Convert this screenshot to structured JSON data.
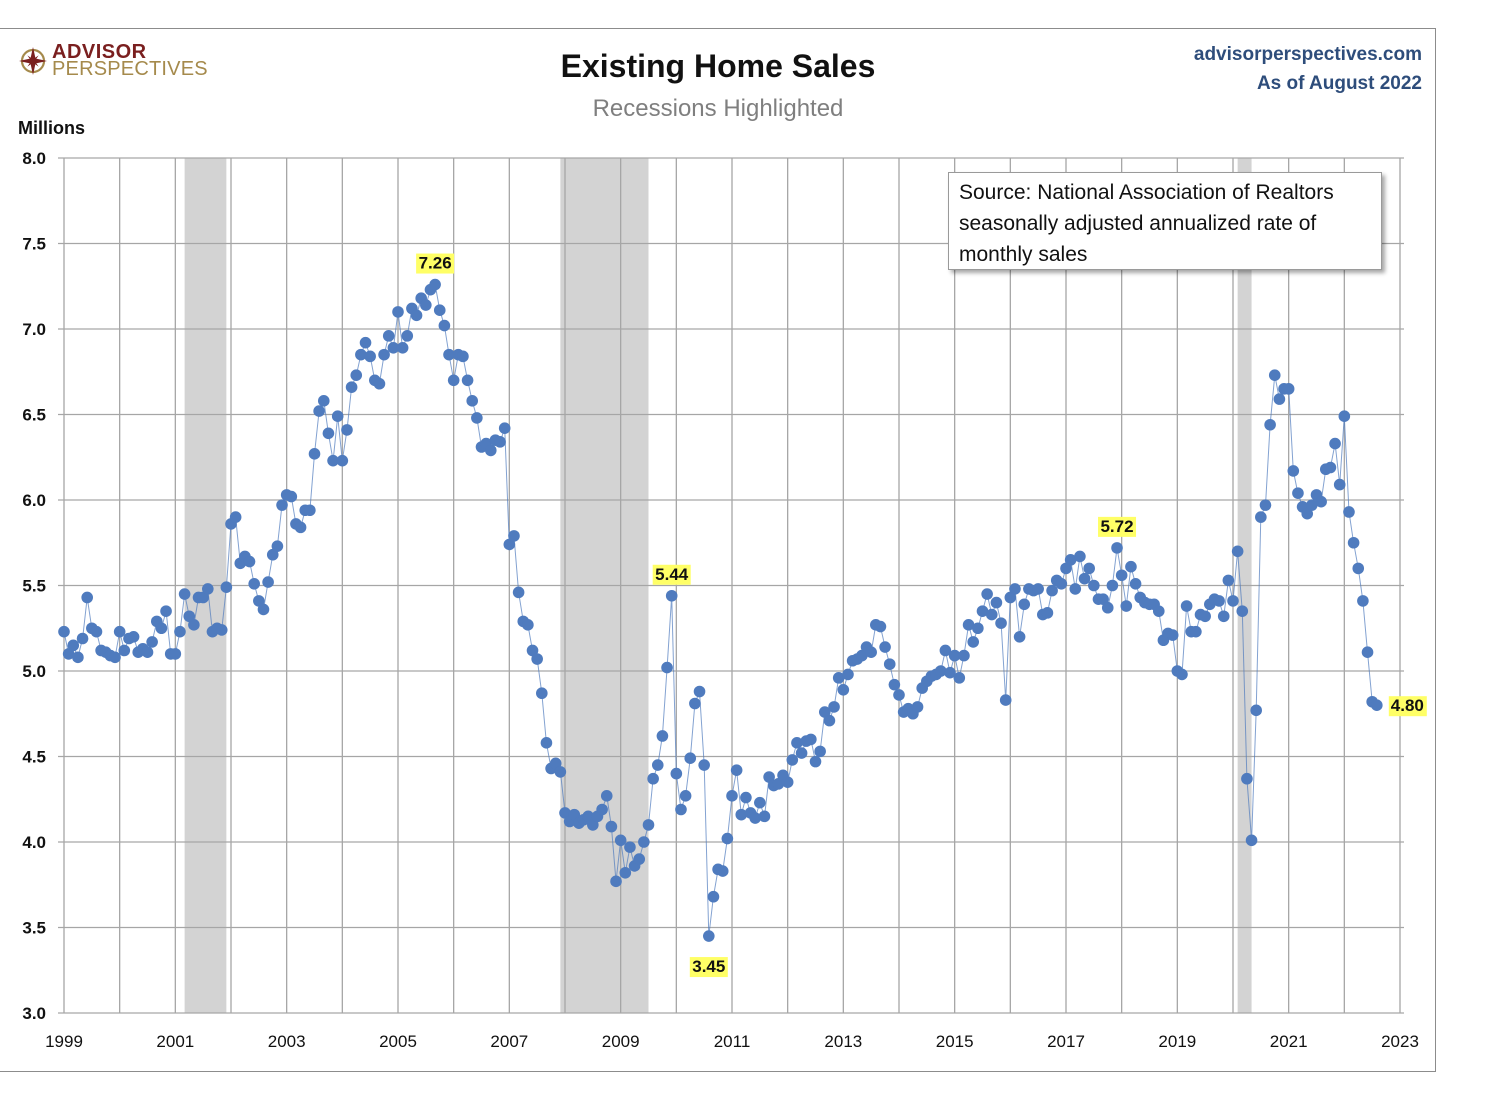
{
  "header": {
    "logo_line1": "ADVISOR",
    "logo_line2": "PERSPECTIVES",
    "title": "Existing Home Sales",
    "subtitle": "Recessions Highlighted",
    "site": "advisorperspectives.com",
    "as_of": "As of August 2022"
  },
  "source_note": {
    "line1": "Source: National Association of Realtors",
    "line2": "seasonally adjusted annualized rate of",
    "line3": "monthly sales"
  },
  "colors": {
    "series": "#4f7bbe",
    "recession": "#d3d3d3",
    "grid": "#a6a6a6",
    "highlight": "#ffff66",
    "logo_red": "#7a1f1f",
    "logo_gold": "#a58a4c",
    "site_blue": "#2e4d7b"
  },
  "chart_data": {
    "type": "line",
    "title": "Existing Home Sales",
    "subtitle": "Recessions Highlighted",
    "xlabel": "",
    "ylabel": "Millions",
    "start": "1999-01",
    "frequency": "monthly",
    "x_range": [
      1999,
      2023
    ],
    "ylim": [
      3.0,
      8.0
    ],
    "yticks": [
      "3.0",
      "3.5",
      "4.0",
      "4.5",
      "5.0",
      "5.5",
      "6.0",
      "6.5",
      "7.0",
      "7.5",
      "8.0"
    ],
    "xticks": [
      "1999",
      "2001",
      "2003",
      "2005",
      "2007",
      "2009",
      "2011",
      "2013",
      "2015",
      "2017",
      "2019",
      "2021",
      "2023"
    ],
    "grid": true,
    "series": [
      {
        "name": "Existing Home Sales (SAAR, millions)",
        "values": [
          5.23,
          5.1,
          5.15,
          5.08,
          5.19,
          5.43,
          5.25,
          5.23,
          5.12,
          5.11,
          5.09,
          5.08,
          5.23,
          5.12,
          5.19,
          5.2,
          5.11,
          5.13,
          5.11,
          5.17,
          5.29,
          5.25,
          5.35,
          5.1,
          5.1,
          5.23,
          5.45,
          5.32,
          5.27,
          5.43,
          5.43,
          5.48,
          5.23,
          5.25,
          5.24,
          5.49,
          5.86,
          5.9,
          5.63,
          5.67,
          5.64,
          5.51,
          5.41,
          5.36,
          5.52,
          5.68,
          5.73,
          5.97,
          6.03,
          6.02,
          5.86,
          5.84,
          5.94,
          5.94,
          6.27,
          6.52,
          6.58,
          6.39,
          6.23,
          6.49,
          6.23,
          6.41,
          6.66,
          6.73,
          6.85,
          6.92,
          6.84,
          6.7,
          6.68,
          6.85,
          6.96,
          6.89,
          7.1,
          6.89,
          6.96,
          7.12,
          7.08,
          7.18,
          7.14,
          7.23,
          7.26,
          7.11,
          7.02,
          6.85,
          6.7,
          6.85,
          6.84,
          6.7,
          6.58,
          6.48,
          6.31,
          6.33,
          6.29,
          6.35,
          6.34,
          6.42,
          5.74,
          5.79,
          5.46,
          5.29,
          5.27,
          5.12,
          5.07,
          4.87,
          4.58,
          4.43,
          4.46,
          4.41,
          4.17,
          4.12,
          4.16,
          4.11,
          4.13,
          4.15,
          4.1,
          4.15,
          4.19,
          4.27,
          4.09,
          3.77,
          4.01,
          3.82,
          3.97,
          3.86,
          3.9,
          4.0,
          4.1,
          4.37,
          4.45,
          4.62,
          5.02,
          5.44,
          4.4,
          4.19,
          4.27,
          4.49,
          4.81,
          4.88,
          4.45,
          3.45,
          3.68,
          3.84,
          3.83,
          4.02,
          4.27,
          4.42,
          4.16,
          4.26,
          4.17,
          4.14,
          4.23,
          4.15,
          4.38,
          4.33,
          4.34,
          4.39,
          4.35,
          4.48,
          4.58,
          4.52,
          4.59,
          4.6,
          4.47,
          4.53,
          4.76,
          4.71,
          4.79,
          4.96,
          4.89,
          4.98,
          5.06,
          5.07,
          5.09,
          5.14,
          5.11,
          5.27,
          5.26,
          5.14,
          5.04,
          4.92,
          4.86,
          4.76,
          4.78,
          4.75,
          4.79,
          4.9,
          4.94,
          4.97,
          4.98,
          5.0,
          5.12,
          4.99,
          5.09,
          4.96,
          5.09,
          5.27,
          5.17,
          5.25,
          5.35,
          5.45,
          5.33,
          5.4,
          5.28,
          4.83,
          5.43,
          5.48,
          5.2,
          5.39,
          5.48,
          5.47,
          5.48,
          5.33,
          5.34,
          5.47,
          5.53,
          5.51,
          5.6,
          5.65,
          5.48,
          5.67,
          5.54,
          5.6,
          5.5,
          5.42,
          5.42,
          5.37,
          5.5,
          5.72,
          5.56,
          5.38,
          5.61,
          5.51,
          5.43,
          5.4,
          5.39,
          5.39,
          5.35,
          5.18,
          5.22,
          5.21,
          5.0,
          4.98,
          5.38,
          5.23,
          5.23,
          5.33,
          5.32,
          5.39,
          5.42,
          5.41,
          5.32,
          5.53,
          5.41,
          5.7,
          5.35,
          4.37,
          4.01,
          4.77,
          5.9,
          5.97,
          6.44,
          6.73,
          6.59,
          6.65,
          6.65,
          6.17,
          6.04,
          5.96,
          5.92,
          5.97,
          6.03,
          5.99,
          6.18,
          6.19,
          6.33,
          6.09,
          6.49,
          5.93,
          5.75,
          5.6,
          5.41,
          5.11,
          4.82,
          4.8
        ]
      }
    ],
    "recessions": [
      {
        "start": "2001-03",
        "end": "2001-11"
      },
      {
        "start": "2007-12",
        "end": "2009-06"
      },
      {
        "start": "2020-02",
        "end": "2020-04"
      }
    ],
    "annotations": [
      {
        "label": "7.26",
        "date": "2005-09",
        "value": 7.26,
        "position": "above"
      },
      {
        "label": "5.44",
        "date": "2009-12",
        "value": 5.44,
        "position": "above"
      },
      {
        "label": "3.45",
        "date": "2010-08",
        "value": 3.45,
        "position": "below"
      },
      {
        "label": "5.72",
        "date": "2017-12",
        "value": 5.72,
        "position": "above"
      },
      {
        "label": "4.80",
        "date": "2022-08",
        "value": 4.8,
        "position": "right"
      }
    ],
    "source": "National Association of Realtors, seasonally adjusted annualized rate of monthly sales"
  }
}
